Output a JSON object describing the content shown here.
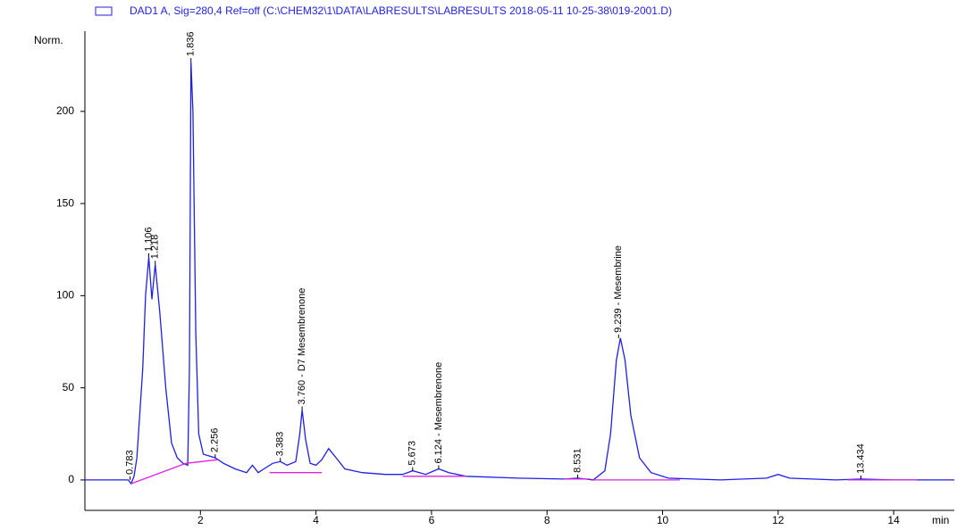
{
  "chart_data": {
    "type": "line",
    "y_label": "Norm.",
    "x_label": "min",
    "xlim": [
      0,
      15.05
    ],
    "ylim": [
      -16.5,
      243.5
    ],
    "xticks": [
      2,
      4,
      6,
      8,
      10,
      12,
      14
    ],
    "yticks": [
      0,
      50,
      100,
      150,
      200
    ],
    "series": [
      {
        "name": "DAD1 A, Sig=280,4 Ref=off (C:\\CHEM32\\1\\DATA\\LABRESULTS\\LABRESULTS 2018-05-11 10-25-38\\019-2001.D)",
        "color": "#1f1fe6",
        "x": [
          0,
          0.75,
          0.8,
          0.85,
          0.9,
          1.0,
          1.05,
          1.106,
          1.16,
          1.218,
          1.3,
          1.4,
          1.5,
          1.6,
          1.7,
          1.78,
          1.81,
          1.836,
          1.87,
          1.92,
          1.97,
          2.05,
          2.256,
          2.4,
          2.6,
          2.8,
          2.9,
          3.0,
          3.1,
          3.25,
          3.383,
          3.5,
          3.65,
          3.72,
          3.76,
          3.82,
          3.9,
          4.0,
          4.1,
          4.22,
          4.35,
          4.5,
          4.8,
          5.2,
          5.5,
          5.673,
          5.9,
          6.124,
          6.3,
          6.6,
          7.5,
          8.3,
          8.531,
          8.8,
          9.0,
          9.1,
          9.2,
          9.27,
          9.35,
          9.45,
          9.6,
          9.8,
          10.1,
          11.0,
          11.8,
          12.0,
          12.2,
          13.0,
          13.434,
          14.0,
          15.05
        ],
        "values": [
          0,
          0,
          -2,
          2,
          12,
          60,
          100,
          121,
          98,
          117,
          90,
          50,
          20,
          12,
          9,
          8,
          60,
          227,
          200,
          80,
          25,
          14,
          12,
          9,
          6,
          4,
          8,
          4,
          6,
          9,
          10,
          8,
          10,
          25,
          38,
          22,
          9,
          8,
          11,
          17,
          12,
          6,
          4,
          3,
          3,
          5,
          3,
          6,
          4,
          2,
          1,
          0.5,
          1,
          0,
          5,
          25,
          65,
          77,
          65,
          35,
          12,
          4,
          1,
          0,
          1,
          3,
          1,
          0,
          0.5,
          0,
          0
        ]
      },
      {
        "color": "#e020e0",
        "x": [
          0.8,
          1.75,
          2.3,
          null,
          3.2,
          4.1,
          null,
          5.5,
          6.6,
          null,
          8.3,
          8.75,
          null,
          8.8,
          10.3,
          null,
          13.2,
          14.4
        ],
        "values": [
          -2,
          9,
          11,
          null,
          4,
          4,
          null,
          2,
          2,
          null,
          0.5,
          0.5,
          null,
          0,
          0,
          null,
          0,
          0
        ]
      }
    ],
    "annotations": [
      {
        "x": 0.783,
        "label": "0.783"
      },
      {
        "x": 1.106,
        "label": "1.106"
      },
      {
        "x": 1.218,
        "label": "1.218"
      },
      {
        "x": 1.836,
        "label": "1.836"
      },
      {
        "x": 2.256,
        "label": "2.256"
      },
      {
        "x": 3.383,
        "label": "3.383"
      },
      {
        "x": 3.76,
        "label": "3.760 -  D7 Mesembrenone"
      },
      {
        "x": 5.673,
        "label": "5.673"
      },
      {
        "x": 6.124,
        "label": "6.124 -  Mesembrenone"
      },
      {
        "x": 8.531,
        "label": "8.531"
      },
      {
        "x": 9.239,
        "label": "9.239 -  Mesembrine"
      },
      {
        "x": 13.434,
        "label": "13.434"
      }
    ]
  }
}
